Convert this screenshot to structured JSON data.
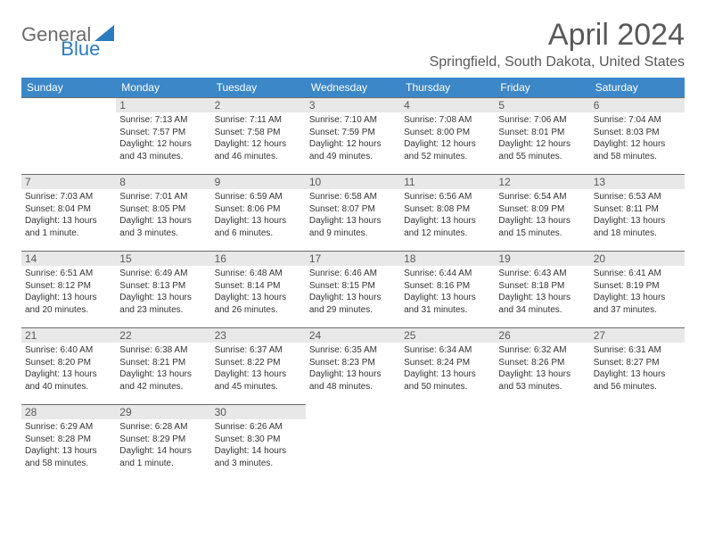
{
  "logo": {
    "general": "General",
    "blue": "Blue"
  },
  "title": "April 2024",
  "location": "Springfield, South Dakota, United States",
  "colors": {
    "header_bg": "#3b87c8",
    "header_text": "#ffffff",
    "daynum_bg": "#e8e8e8",
    "border": "#6b6b6b",
    "title_text": "#595959",
    "body_text": "#333333",
    "logo_gray": "#6b6b6b",
    "logo_blue": "#2b7bbf"
  },
  "weekdays": [
    "Sunday",
    "Monday",
    "Tuesday",
    "Wednesday",
    "Thursday",
    "Friday",
    "Saturday"
  ],
  "weeks": [
    [
      null,
      {
        "d": "1",
        "sr": "Sunrise: 7:13 AM",
        "ss": "Sunset: 7:57 PM",
        "dl1": "Daylight: 12 hours",
        "dl2": "and 43 minutes."
      },
      {
        "d": "2",
        "sr": "Sunrise: 7:11 AM",
        "ss": "Sunset: 7:58 PM",
        "dl1": "Daylight: 12 hours",
        "dl2": "and 46 minutes."
      },
      {
        "d": "3",
        "sr": "Sunrise: 7:10 AM",
        "ss": "Sunset: 7:59 PM",
        "dl1": "Daylight: 12 hours",
        "dl2": "and 49 minutes."
      },
      {
        "d": "4",
        "sr": "Sunrise: 7:08 AM",
        "ss": "Sunset: 8:00 PM",
        "dl1": "Daylight: 12 hours",
        "dl2": "and 52 minutes."
      },
      {
        "d": "5",
        "sr": "Sunrise: 7:06 AM",
        "ss": "Sunset: 8:01 PM",
        "dl1": "Daylight: 12 hours",
        "dl2": "and 55 minutes."
      },
      {
        "d": "6",
        "sr": "Sunrise: 7:04 AM",
        "ss": "Sunset: 8:03 PM",
        "dl1": "Daylight: 12 hours",
        "dl2": "and 58 minutes."
      }
    ],
    [
      {
        "d": "7",
        "sr": "Sunrise: 7:03 AM",
        "ss": "Sunset: 8:04 PM",
        "dl1": "Daylight: 13 hours",
        "dl2": "and 1 minute."
      },
      {
        "d": "8",
        "sr": "Sunrise: 7:01 AM",
        "ss": "Sunset: 8:05 PM",
        "dl1": "Daylight: 13 hours",
        "dl2": "and 3 minutes."
      },
      {
        "d": "9",
        "sr": "Sunrise: 6:59 AM",
        "ss": "Sunset: 8:06 PM",
        "dl1": "Daylight: 13 hours",
        "dl2": "and 6 minutes."
      },
      {
        "d": "10",
        "sr": "Sunrise: 6:58 AM",
        "ss": "Sunset: 8:07 PM",
        "dl1": "Daylight: 13 hours",
        "dl2": "and 9 minutes."
      },
      {
        "d": "11",
        "sr": "Sunrise: 6:56 AM",
        "ss": "Sunset: 8:08 PM",
        "dl1": "Daylight: 13 hours",
        "dl2": "and 12 minutes."
      },
      {
        "d": "12",
        "sr": "Sunrise: 6:54 AM",
        "ss": "Sunset: 8:09 PM",
        "dl1": "Daylight: 13 hours",
        "dl2": "and 15 minutes."
      },
      {
        "d": "13",
        "sr": "Sunrise: 6:53 AM",
        "ss": "Sunset: 8:11 PM",
        "dl1": "Daylight: 13 hours",
        "dl2": "and 18 minutes."
      }
    ],
    [
      {
        "d": "14",
        "sr": "Sunrise: 6:51 AM",
        "ss": "Sunset: 8:12 PM",
        "dl1": "Daylight: 13 hours",
        "dl2": "and 20 minutes."
      },
      {
        "d": "15",
        "sr": "Sunrise: 6:49 AM",
        "ss": "Sunset: 8:13 PM",
        "dl1": "Daylight: 13 hours",
        "dl2": "and 23 minutes."
      },
      {
        "d": "16",
        "sr": "Sunrise: 6:48 AM",
        "ss": "Sunset: 8:14 PM",
        "dl1": "Daylight: 13 hours",
        "dl2": "and 26 minutes."
      },
      {
        "d": "17",
        "sr": "Sunrise: 6:46 AM",
        "ss": "Sunset: 8:15 PM",
        "dl1": "Daylight: 13 hours",
        "dl2": "and 29 minutes."
      },
      {
        "d": "18",
        "sr": "Sunrise: 6:44 AM",
        "ss": "Sunset: 8:16 PM",
        "dl1": "Daylight: 13 hours",
        "dl2": "and 31 minutes."
      },
      {
        "d": "19",
        "sr": "Sunrise: 6:43 AM",
        "ss": "Sunset: 8:18 PM",
        "dl1": "Daylight: 13 hours",
        "dl2": "and 34 minutes."
      },
      {
        "d": "20",
        "sr": "Sunrise: 6:41 AM",
        "ss": "Sunset: 8:19 PM",
        "dl1": "Daylight: 13 hours",
        "dl2": "and 37 minutes."
      }
    ],
    [
      {
        "d": "21",
        "sr": "Sunrise: 6:40 AM",
        "ss": "Sunset: 8:20 PM",
        "dl1": "Daylight: 13 hours",
        "dl2": "and 40 minutes."
      },
      {
        "d": "22",
        "sr": "Sunrise: 6:38 AM",
        "ss": "Sunset: 8:21 PM",
        "dl1": "Daylight: 13 hours",
        "dl2": "and 42 minutes."
      },
      {
        "d": "23",
        "sr": "Sunrise: 6:37 AM",
        "ss": "Sunset: 8:22 PM",
        "dl1": "Daylight: 13 hours",
        "dl2": "and 45 minutes."
      },
      {
        "d": "24",
        "sr": "Sunrise: 6:35 AM",
        "ss": "Sunset: 8:23 PM",
        "dl1": "Daylight: 13 hours",
        "dl2": "and 48 minutes."
      },
      {
        "d": "25",
        "sr": "Sunrise: 6:34 AM",
        "ss": "Sunset: 8:24 PM",
        "dl1": "Daylight: 13 hours",
        "dl2": "and 50 minutes."
      },
      {
        "d": "26",
        "sr": "Sunrise: 6:32 AM",
        "ss": "Sunset: 8:26 PM",
        "dl1": "Daylight: 13 hours",
        "dl2": "and 53 minutes."
      },
      {
        "d": "27",
        "sr": "Sunrise: 6:31 AM",
        "ss": "Sunset: 8:27 PM",
        "dl1": "Daylight: 13 hours",
        "dl2": "and 56 minutes."
      }
    ],
    [
      {
        "d": "28",
        "sr": "Sunrise: 6:29 AM",
        "ss": "Sunset: 8:28 PM",
        "dl1": "Daylight: 13 hours",
        "dl2": "and 58 minutes."
      },
      {
        "d": "29",
        "sr": "Sunrise: 6:28 AM",
        "ss": "Sunset: 8:29 PM",
        "dl1": "Daylight: 14 hours",
        "dl2": "and 1 minute."
      },
      {
        "d": "30",
        "sr": "Sunrise: 6:26 AM",
        "ss": "Sunset: 8:30 PM",
        "dl1": "Daylight: 14 hours",
        "dl2": "and 3 minutes."
      },
      null,
      null,
      null,
      null
    ]
  ]
}
